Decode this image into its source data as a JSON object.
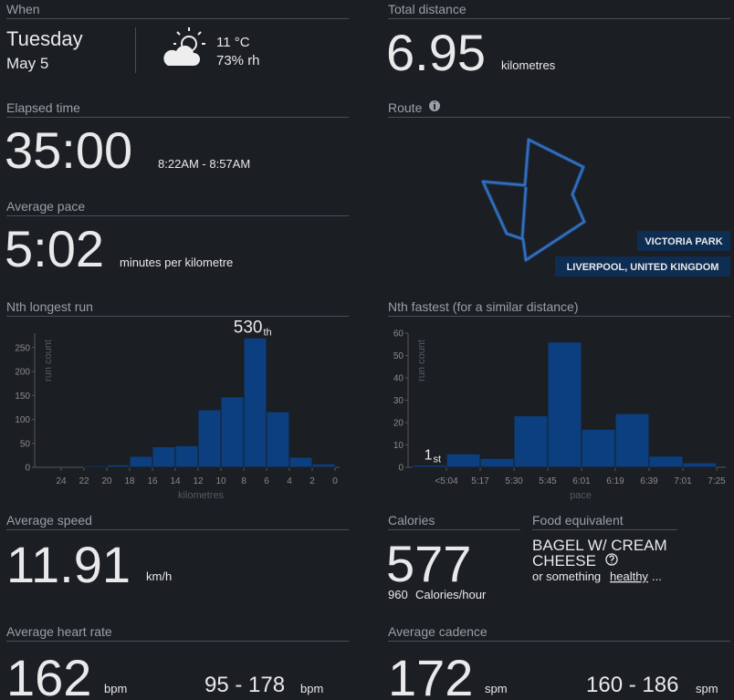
{
  "when": {
    "label": "When",
    "day": "Tuesday",
    "date": "May 5",
    "temperature": "11 °C",
    "humidity": "73% rh"
  },
  "total_distance": {
    "label": "Total distance",
    "value": 6.95,
    "unit": "kilometres"
  },
  "elapsed_time": {
    "label": "Elapsed time",
    "value": "35:00",
    "range": "8:22AM - 8:57AM"
  },
  "route": {
    "label": "Route",
    "place": "VICTORIA PARK",
    "city": "LIVERPOOL, UNITED KINGDOM"
  },
  "average_pace": {
    "label": "Average pace",
    "value": "5:02",
    "unit": "minutes per kilometre"
  },
  "average_speed": {
    "label": "Average speed",
    "value": 11.91,
    "unit": "km/h"
  },
  "calories": {
    "label": "Calories",
    "value": 577,
    "rate": 960,
    "rate_unit": "Calories/hour"
  },
  "food": {
    "label": "Food equivalent",
    "item_line1": "BAGEL W/ CREAM",
    "item_line2": "CHEESE",
    "note_prefix": "or something",
    "note_link": "healthy",
    "note_suffix": "..."
  },
  "heart_rate": {
    "label": "Average heart rate",
    "value": 162,
    "unit": "bpm",
    "range": "95 - 178",
    "range_unit": "bpm"
  },
  "cadence": {
    "label": "Average cadence",
    "value": 172,
    "unit": "spm",
    "range": "160 - 186",
    "range_unit": "spm"
  },
  "chart_data": [
    {
      "type": "histogram",
      "title": "Nth longest run",
      "xlabel": "kilometres",
      "ylabel": "run count",
      "bins": [
        0,
        2,
        4,
        6,
        8,
        10,
        12,
        14,
        16,
        18,
        20,
        22
      ],
      "values": [
        7,
        21,
        116,
        270,
        147,
        120,
        45,
        43,
        23,
        5,
        3
      ],
      "xlim": [
        26,
        0
      ],
      "xticks": [
        24,
        22,
        20,
        18,
        16,
        14,
        12,
        10,
        8,
        6,
        4,
        2,
        0
      ],
      "ylim": [
        0,
        280
      ],
      "yticks": [
        0,
        50,
        100,
        150,
        200,
        250
      ],
      "color": "#0b3f7f",
      "annotation": "530",
      "annotation_suffix": "th"
    },
    {
      "type": "bar",
      "title": "Nth fastest (for a similar distance)",
      "xlabel": "pace",
      "ylabel": "run count",
      "categories": [
        "<5:04",
        "5:17",
        "5:30",
        "5:45",
        "6:01",
        "6:19",
        "6:39",
        "7:01",
        "7:25"
      ],
      "values": [
        1,
        6,
        4,
        23,
        56,
        17,
        24,
        5,
        2
      ],
      "ylim": [
        0,
        60
      ],
      "yticks": [
        0,
        10,
        20,
        30,
        40,
        50,
        60
      ],
      "color": "#0b3f7f",
      "annotation": "1",
      "annotation_suffix": "st"
    }
  ]
}
